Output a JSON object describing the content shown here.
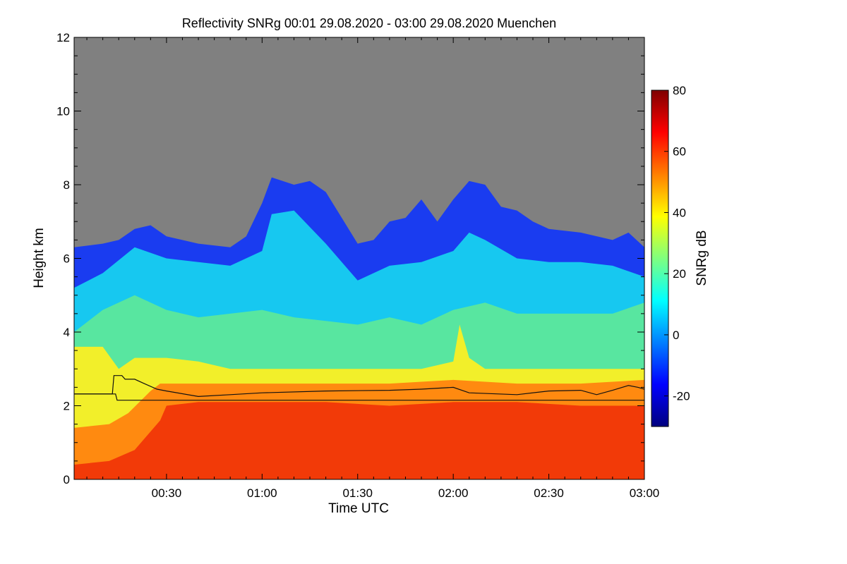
{
  "chart_data": {
    "type": "heatmap",
    "title": "Reflectivity SNRg   00:01 29.08.2020 - 03:00 29.08.2020 Muenchen",
    "xlabel": "Time UTC",
    "ylabel": "Height km",
    "colorbar_label": "SNRg dB",
    "x_range_minutes": [
      1,
      180
    ],
    "x_ticks": [
      {
        "minute": 30,
        "label": "00:30"
      },
      {
        "minute": 60,
        "label": "01:00"
      },
      {
        "minute": 90,
        "label": "01:30"
      },
      {
        "minute": 120,
        "label": "02:00"
      },
      {
        "minute": 150,
        "label": "02:30"
      },
      {
        "minute": 180,
        "label": "03:00"
      }
    ],
    "ylim": [
      0,
      12
    ],
    "y_ticks": [
      {
        "value": 0,
        "label": "0"
      },
      {
        "value": 2,
        "label": "2"
      },
      {
        "value": 4,
        "label": "4"
      },
      {
        "value": 6,
        "label": "6"
      },
      {
        "value": 8,
        "label": "8"
      },
      {
        "value": 10,
        "label": "10"
      },
      {
        "value": 12,
        "label": "12"
      }
    ],
    "colorbar_range": [
      -30,
      80
    ],
    "colorbar_ticks": [
      {
        "value": -20,
        "label": "-20"
      },
      {
        "value": 0,
        "label": "0"
      },
      {
        "value": 20,
        "label": "20"
      },
      {
        "value": 40,
        "label": "40"
      },
      {
        "value": 60,
        "label": "60"
      },
      {
        "value": 80,
        "label": "80"
      }
    ],
    "colormap": [
      "#00007f",
      "#0000ff",
      "#007fff",
      "#00ffff",
      "#7fff7f",
      "#ffff00",
      "#ff7f00",
      "#ff0000",
      "#7f0000"
    ],
    "no_data_color": "#808080",
    "layers": [
      {
        "name": "signal_top",
        "color": "#1a3cf0",
        "points": [
          [
            1,
            6.3
          ],
          [
            10,
            6.4
          ],
          [
            15,
            6.5
          ],
          [
            20,
            6.8
          ],
          [
            25,
            6.9
          ],
          [
            30,
            6.6
          ],
          [
            40,
            6.4
          ],
          [
            50,
            6.3
          ],
          [
            55,
            6.6
          ],
          [
            60,
            7.5
          ],
          [
            63,
            8.2
          ],
          [
            70,
            8.0
          ],
          [
            75,
            8.1
          ],
          [
            80,
            7.8
          ],
          [
            85,
            7.1
          ],
          [
            90,
            6.4
          ],
          [
            95,
            6.5
          ],
          [
            100,
            7.0
          ],
          [
            105,
            7.1
          ],
          [
            110,
            7.6
          ],
          [
            115,
            7.0
          ],
          [
            120,
            7.6
          ],
          [
            125,
            8.1
          ],
          [
            130,
            8.0
          ],
          [
            135,
            7.4
          ],
          [
            140,
            7.3
          ],
          [
            145,
            7.0
          ],
          [
            150,
            6.8
          ],
          [
            160,
            6.7
          ],
          [
            170,
            6.5
          ],
          [
            175,
            6.7
          ],
          [
            180,
            6.3
          ]
        ]
      },
      {
        "name": "cyan_20dB",
        "color": "#17c8f0",
        "points": [
          [
            1,
            5.2
          ],
          [
            10,
            5.6
          ],
          [
            20,
            6.3
          ],
          [
            30,
            6.0
          ],
          [
            40,
            5.9
          ],
          [
            50,
            5.8
          ],
          [
            60,
            6.2
          ],
          [
            63,
            7.2
          ],
          [
            70,
            7.3
          ],
          [
            80,
            6.4
          ],
          [
            90,
            5.4
          ],
          [
            100,
            5.8
          ],
          [
            110,
            5.9
          ],
          [
            120,
            6.2
          ],
          [
            125,
            6.7
          ],
          [
            130,
            6.5
          ],
          [
            140,
            6.0
          ],
          [
            150,
            5.9
          ],
          [
            160,
            5.9
          ],
          [
            170,
            5.8
          ],
          [
            180,
            5.5
          ]
        ]
      },
      {
        "name": "green_30dB",
        "color": "#58e6a0",
        "points": [
          [
            1,
            4.0
          ],
          [
            10,
            4.6
          ],
          [
            20,
            5.0
          ],
          [
            30,
            4.6
          ],
          [
            40,
            4.4
          ],
          [
            50,
            4.5
          ],
          [
            60,
            4.6
          ],
          [
            70,
            4.4
          ],
          [
            80,
            4.3
          ],
          [
            90,
            4.2
          ],
          [
            100,
            4.4
          ],
          [
            110,
            4.2
          ],
          [
            120,
            4.6
          ],
          [
            130,
            4.8
          ],
          [
            140,
            4.5
          ],
          [
            150,
            4.5
          ],
          [
            160,
            4.5
          ],
          [
            170,
            4.5
          ],
          [
            180,
            4.8
          ]
        ]
      },
      {
        "name": "yellow_40dB",
        "color": "#f2ef2a",
        "points": [
          [
            1,
            3.6
          ],
          [
            10,
            3.6
          ],
          [
            15,
            3.0
          ],
          [
            20,
            3.3
          ],
          [
            30,
            3.3
          ],
          [
            40,
            3.2
          ],
          [
            50,
            3.0
          ],
          [
            60,
            3.0
          ],
          [
            70,
            3.0
          ],
          [
            80,
            3.0
          ],
          [
            90,
            3.0
          ],
          [
            100,
            3.0
          ],
          [
            110,
            3.0
          ],
          [
            120,
            3.2
          ],
          [
            122,
            4.2
          ],
          [
            125,
            3.3
          ],
          [
            130,
            3.0
          ],
          [
            140,
            3.0
          ],
          [
            150,
            3.0
          ],
          [
            160,
            3.0
          ],
          [
            170,
            3.0
          ],
          [
            180,
            3.0
          ]
        ]
      },
      {
        "name": "orange_55dB",
        "color": "#ff8a10",
        "points": [
          [
            1,
            1.4
          ],
          [
            12,
            1.5
          ],
          [
            18,
            1.8
          ],
          [
            25,
            2.4
          ],
          [
            28,
            2.6
          ],
          [
            40,
            2.6
          ],
          [
            60,
            2.6
          ],
          [
            80,
            2.6
          ],
          [
            100,
            2.6
          ],
          [
            120,
            2.7
          ],
          [
            140,
            2.6
          ],
          [
            160,
            2.6
          ],
          [
            180,
            2.7
          ]
        ]
      },
      {
        "name": "red_65dB",
        "color": "#f23a08",
        "points": [
          [
            1,
            0.4
          ],
          [
            12,
            0.5
          ],
          [
            20,
            0.8
          ],
          [
            28,
            1.6
          ],
          [
            30,
            2.0
          ],
          [
            40,
            2.1
          ],
          [
            60,
            2.1
          ],
          [
            80,
            2.1
          ],
          [
            100,
            2.0
          ],
          [
            120,
            2.1
          ],
          [
            140,
            2.1
          ],
          [
            160,
            2.0
          ],
          [
            180,
            2.0
          ]
        ]
      }
    ],
    "lines": [
      {
        "name": "upper",
        "points": [
          [
            1,
            2.32
          ],
          [
            13,
            2.32
          ],
          [
            13.5,
            2.82
          ],
          [
            16,
            2.82
          ],
          [
            17,
            2.72
          ],
          [
            20,
            2.72
          ],
          [
            23,
            2.6
          ],
          [
            27,
            2.45
          ],
          [
            30,
            2.4
          ],
          [
            40,
            2.25
          ],
          [
            50,
            2.3
          ],
          [
            60,
            2.35
          ],
          [
            80,
            2.4
          ],
          [
            100,
            2.42
          ],
          [
            110,
            2.45
          ],
          [
            120,
            2.5
          ],
          [
            125,
            2.35
          ],
          [
            140,
            2.3
          ],
          [
            150,
            2.4
          ],
          [
            160,
            2.42
          ],
          [
            165,
            2.3
          ],
          [
            170,
            2.42
          ],
          [
            175,
            2.55
          ],
          [
            178,
            2.5
          ],
          [
            180,
            2.45
          ]
        ]
      },
      {
        "name": "lower",
        "points": [
          [
            1,
            2.32
          ],
          [
            14,
            2.32
          ],
          [
            14.5,
            2.15
          ],
          [
            180,
            2.15
          ]
        ]
      }
    ]
  }
}
